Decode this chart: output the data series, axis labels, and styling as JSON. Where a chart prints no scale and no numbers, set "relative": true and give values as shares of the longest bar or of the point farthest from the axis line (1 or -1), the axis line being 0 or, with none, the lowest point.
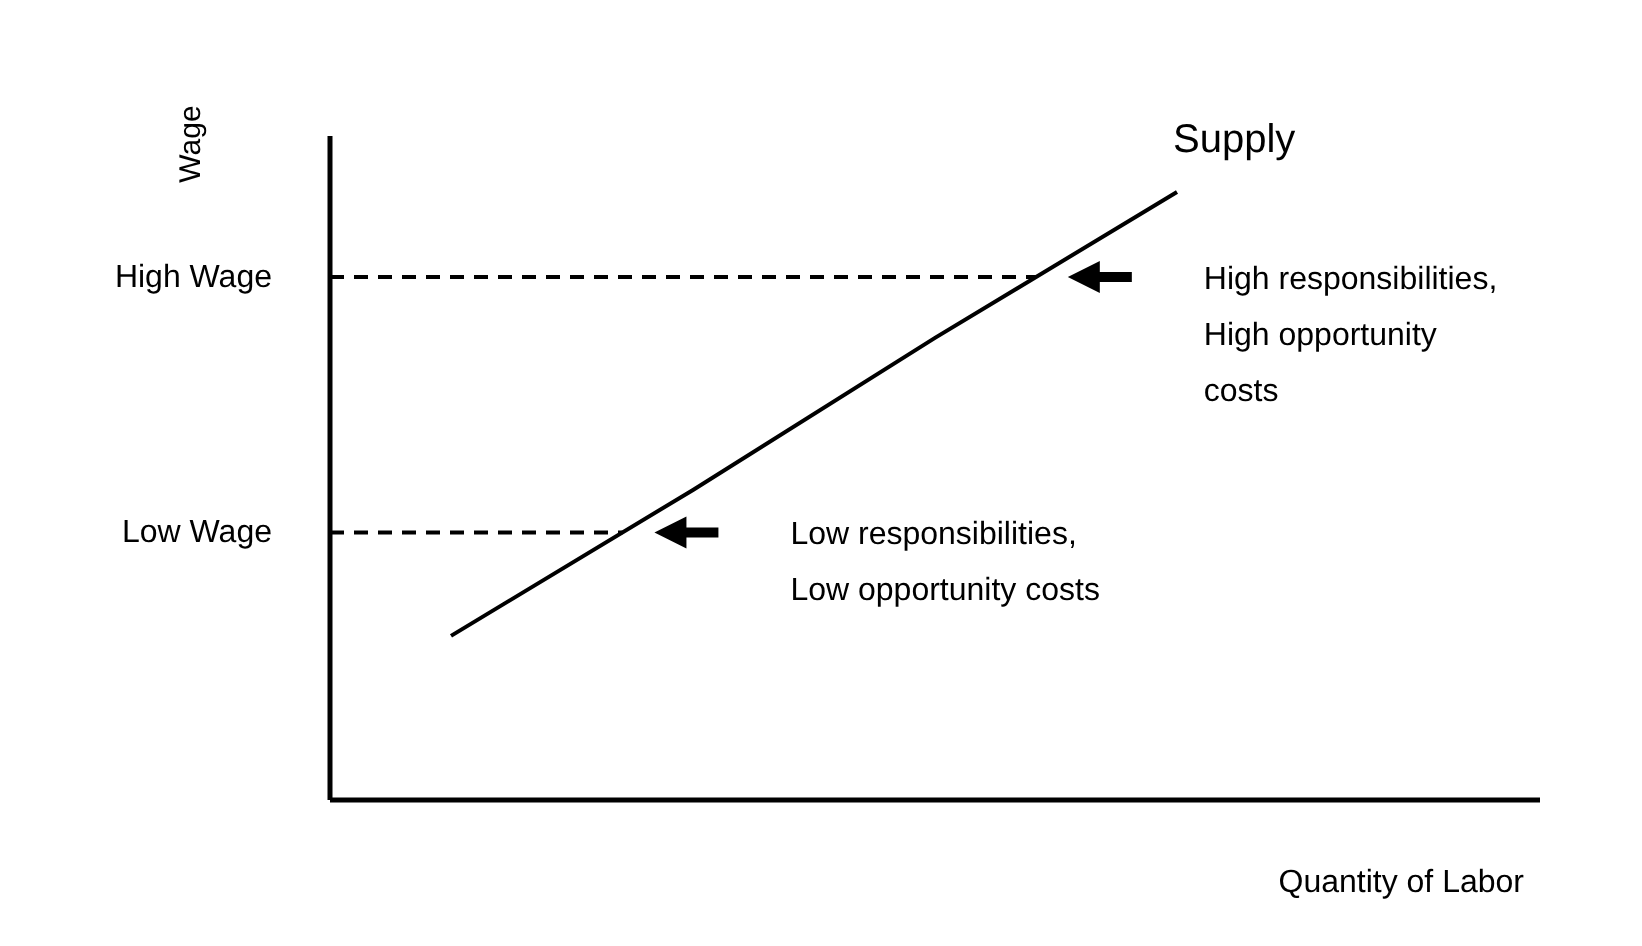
{
  "chart_data": {
    "type": "line",
    "xlabel": "Quantity of Labor",
    "ylabel": "Wage",
    "categories": [
      null,
      null,
      null,
      null,
      null
    ],
    "relative": true,
    "series": [
      {
        "name": "Supply",
        "color": "#000000",
        "values": [
          0.27,
          0.51,
          0.76,
          1,
          null
        ]
      }
    ],
    "ref_lines": [
      {
        "axis": "y",
        "value": 0.86,
        "label": "High Wage",
        "line_style": "dashed",
        "color": "#000000"
      },
      {
        "axis": "y",
        "value": 0.44,
        "label": "Low Wage",
        "line_style": "dashed",
        "color": "#000000"
      }
    ],
    "annotations": [
      "High responsibilities,\nHigh opportunity\ncosts",
      "Low responsibilities,\nLow opportunity costs"
    ]
  }
}
